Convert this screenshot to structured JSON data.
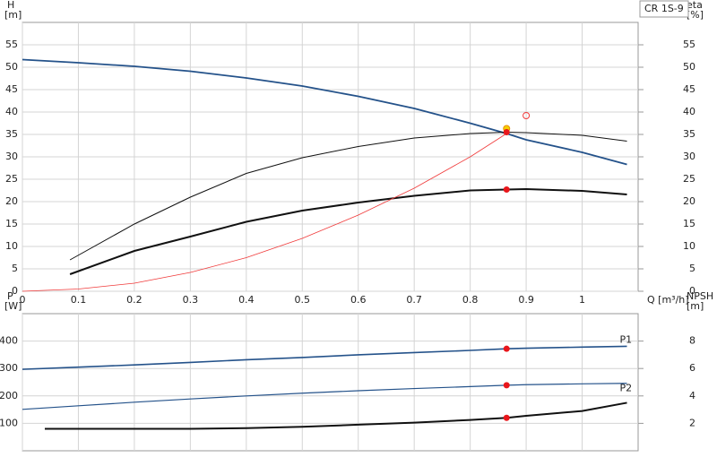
{
  "chart_data": [
    {
      "type": "line",
      "legend_text": "CR 1S-9",
      "y_label": [
        "H",
        "[m]"
      ],
      "y2_label": [
        "eta",
        "[%]"
      ],
      "x_label": "Q [m³/h]",
      "xlim": [
        0,
        1.1
      ],
      "xticks": [
        0,
        0.1,
        0.2,
        0.3,
        0.4,
        0.5,
        0.6,
        0.7,
        0.8,
        0.9,
        1.0
      ],
      "xtick_labels": true,
      "ylim": [
        0,
        60
      ],
      "yticks": [
        0,
        5,
        10,
        15,
        20,
        25,
        30,
        35,
        40,
        45,
        50,
        55
      ],
      "y2lim": [
        0,
        60
      ],
      "y2ticks": [
        0,
        5,
        10,
        15,
        20,
        25,
        30,
        35,
        40,
        45,
        50,
        55
      ],
      "grid": true,
      "series": [
        {
          "color": "#24528a",
          "width": 1.8,
          "x": [
            0,
            0.1,
            0.2,
            0.3,
            0.4,
            0.5,
            0.6,
            0.7,
            0.8,
            0.865,
            0.9,
            1.0,
            1.08
          ],
          "values": [
            51.7,
            51,
            50.2,
            49.1,
            47.6,
            45.8,
            43.5,
            40.8,
            37.5,
            35.2,
            33.8,
            31,
            28.3
          ]
        },
        {
          "color": "#111111",
          "width": 1,
          "axis": "y2",
          "x": [
            0.085,
            0.2,
            0.3,
            0.4,
            0.5,
            0.6,
            0.7,
            0.8,
            0.865,
            0.9,
            1.0,
            1.08
          ],
          "values": [
            7,
            15,
            21,
            26.3,
            29.8,
            32.3,
            34.2,
            35.2,
            35.5,
            35.4,
            34.8,
            33.5
          ]
        },
        {
          "color": "#111111",
          "width": 2,
          "axis": "y2",
          "x": [
            0.085,
            0.2,
            0.3,
            0.4,
            0.5,
            0.6,
            0.7,
            0.8,
            0.865,
            0.9,
            1.0,
            1.08
          ],
          "values": [
            3.8,
            9,
            12.2,
            15.5,
            18,
            19.8,
            21.3,
            22.5,
            22.7,
            22.8,
            22.4,
            21.6
          ]
        },
        {
          "color": "#f03a3a",
          "width": 0.8,
          "x": [
            0,
            0.1,
            0.2,
            0.3,
            0.4,
            0.5,
            0.6,
            0.7,
            0.8,
            0.865
          ],
          "values": [
            0,
            0.5,
            1.8,
            4.2,
            7.5,
            11.8,
            17,
            23,
            30,
            35.2
          ]
        }
      ],
      "markers": [
        {
          "x": 0.865,
          "y": 36.3,
          "style": "ring",
          "color": "#f5d000"
        },
        {
          "x": 0.865,
          "y": 35.5,
          "style": "dot",
          "color": "#e8161b"
        },
        {
          "x": 0.865,
          "y": 22.7,
          "style": "dot",
          "color": "#e8161b"
        },
        {
          "x": 0.9,
          "y": 39.2,
          "style": "open",
          "color": "#f03a3a"
        }
      ]
    },
    {
      "type": "line",
      "y_label": [
        "P",
        "[W]"
      ],
      "y2_label": [
        "NPSH",
        "[m]"
      ],
      "xlim": [
        0,
        1.1
      ],
      "xticks": [
        0,
        0.1,
        0.2,
        0.3,
        0.4,
        0.5,
        0.6,
        0.7,
        0.8,
        0.9,
        1.0
      ],
      "xtick_labels": false,
      "ylim": [
        0,
        500
      ],
      "yticks": [
        100,
        200,
        300,
        400
      ],
      "y2lim": [
        0,
        10
      ],
      "y2ticks": [
        2,
        4,
        6,
        8
      ],
      "grid": true,
      "series": [
        {
          "name": "P1",
          "color": "#24528a",
          "width": 1.6,
          "x": [
            0,
            0.1,
            0.2,
            0.3,
            0.4,
            0.5,
            0.6,
            0.7,
            0.8,
            0.865,
            0.9,
            1.0,
            1.08
          ],
          "values": [
            297,
            305,
            313,
            322,
            332,
            340,
            350,
            358,
            366,
            372,
            374,
            378,
            381
          ]
        },
        {
          "name": "P2",
          "color": "#24528a",
          "width": 1.2,
          "x": [
            0,
            0.1,
            0.2,
            0.3,
            0.4,
            0.5,
            0.6,
            0.7,
            0.8,
            0.865,
            0.9,
            1.0,
            1.08
          ],
          "values": [
            151,
            164,
            177,
            189,
            200,
            210,
            219,
            227,
            234,
            239,
            241,
            244,
            246
          ]
        },
        {
          "color": "#111111",
          "width": 2,
          "axis": "y2",
          "x": [
            0.04,
            0.3,
            0.4,
            0.5,
            0.6,
            0.7,
            0.8,
            0.865,
            0.9,
            1.0,
            1.08
          ],
          "values": [
            1.6,
            1.6,
            1.65,
            1.75,
            1.9,
            2.05,
            2.25,
            2.4,
            2.55,
            2.9,
            3.5
          ]
        }
      ],
      "markers": [
        {
          "x": 0.865,
          "y": 372,
          "style": "dot",
          "color": "#e8161b"
        },
        {
          "x": 0.865,
          "y": 239,
          "style": "dot",
          "color": "#e8161b"
        },
        {
          "x": 0.865,
          "y": 2.4,
          "axis": "y2",
          "style": "dot",
          "color": "#e8161b"
        }
      ]
    }
  ]
}
